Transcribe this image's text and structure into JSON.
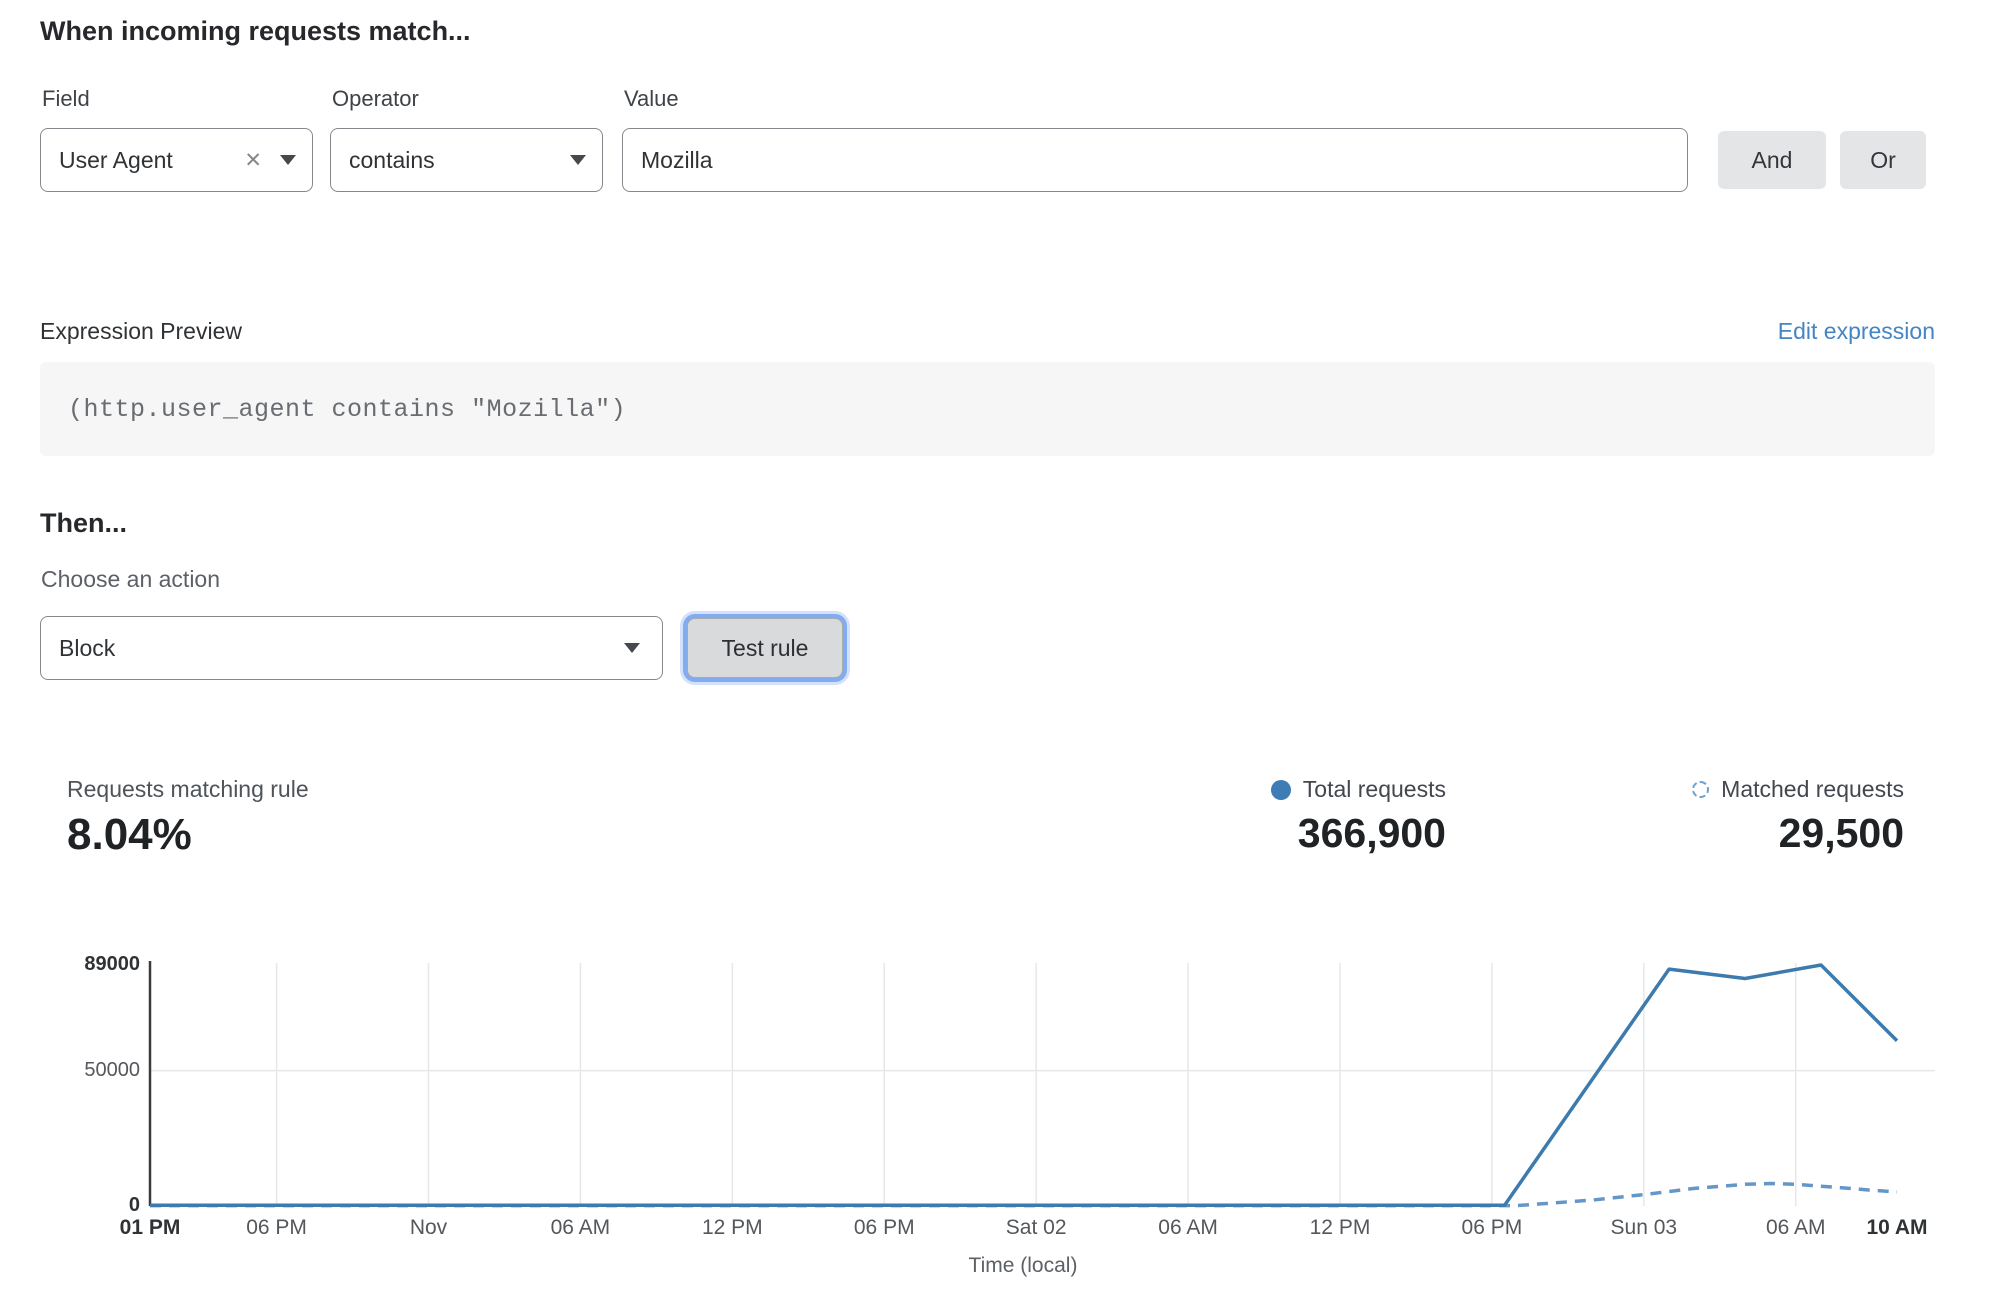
{
  "rule_builder": {
    "heading": "When incoming requests match...",
    "field": {
      "label": "Field",
      "value": "User Agent"
    },
    "operator": {
      "label": "Operator",
      "value": "contains"
    },
    "value_input": {
      "label": "Value",
      "value": "Mozilla"
    },
    "and_label": "And",
    "or_label": "Or"
  },
  "expression_preview": {
    "label": "Expression Preview",
    "edit_link": "Edit expression",
    "code": "(http.user_agent contains \"Mozilla\")"
  },
  "action_section": {
    "heading": "Then...",
    "choose_label": "Choose an action",
    "action_value": "Block",
    "test_button": "Test rule"
  },
  "stats": {
    "matching_label": "Requests matching rule",
    "matching_value": "8.04%",
    "total_label": "Total requests",
    "total_value": "366,900",
    "matched_label": "Matched requests",
    "matched_value": "29,500"
  },
  "chart_data": {
    "type": "line",
    "title": "",
    "xlabel": "Time (local)",
    "ylabel": "",
    "ylim": [
      0,
      89000
    ],
    "x_span_hours": 69,
    "grid": "vertical-per-tick, horizontal-at-50000",
    "legend_position": "top-right-above-chart",
    "colors": {
      "total": "#3d7aad",
      "matched": "#6596c8",
      "grid": "#e6e7e9",
      "axis": "#3a3d40"
    },
    "y_ticks": [
      {
        "value": 0,
        "label": "0",
        "bold": true
      },
      {
        "value": 50000,
        "label": "50000",
        "bold": false
      },
      {
        "value": 89000,
        "label": "89000",
        "bold": true
      }
    ],
    "x_ticks": [
      {
        "hour": 0,
        "label": "01 PM",
        "bold": true
      },
      {
        "hour": 5,
        "label": "06 PM",
        "bold": false
      },
      {
        "hour": 11,
        "label": "Nov",
        "bold": false
      },
      {
        "hour": 17,
        "label": "06 AM",
        "bold": false
      },
      {
        "hour": 23,
        "label": "12 PM",
        "bold": false
      },
      {
        "hour": 29,
        "label": "06 PM",
        "bold": false
      },
      {
        "hour": 35,
        "label": "Sat 02",
        "bold": false
      },
      {
        "hour": 41,
        "label": "06 AM",
        "bold": false
      },
      {
        "hour": 47,
        "label": "12 PM",
        "bold": false
      },
      {
        "hour": 53,
        "label": "06 PM",
        "bold": false
      },
      {
        "hour": 59,
        "label": "Sun 03",
        "bold": false
      },
      {
        "hour": 65,
        "label": "06 AM",
        "bold": false
      },
      {
        "hour": 69,
        "label": "10 AM",
        "bold": true
      }
    ],
    "series": [
      {
        "name": "Total requests",
        "style": "solid",
        "points": [
          [
            0,
            300
          ],
          [
            53.5,
            300
          ],
          [
            60,
            87500
          ],
          [
            63,
            84000
          ],
          [
            66,
            89000
          ],
          [
            69,
            61000
          ]
        ]
      },
      {
        "name": "Matched requests",
        "style": "dashed",
        "points": [
          [
            0,
            150
          ],
          [
            54,
            150
          ],
          [
            57,
            2200
          ],
          [
            59,
            4200
          ],
          [
            61,
            6500
          ],
          [
            63,
            8000
          ],
          [
            64,
            8300
          ],
          [
            65,
            8000
          ],
          [
            66,
            7300
          ],
          [
            67,
            6600
          ],
          [
            68,
            5800
          ],
          [
            69,
            5200
          ]
        ]
      }
    ]
  }
}
